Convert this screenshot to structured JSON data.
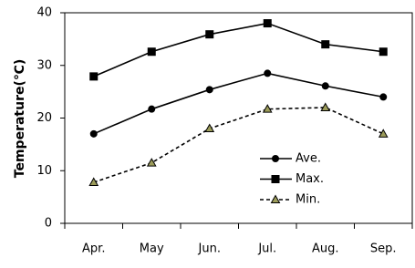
{
  "chart_data": {
    "type": "line",
    "y_label": "Temperature(℃)",
    "categories": [
      "Apr.",
      "May",
      "Jun.",
      "Jul.",
      "Aug.",
      "Sep."
    ],
    "series": [
      {
        "name": "Ave.",
        "color": "#000000",
        "marker": "circle",
        "marker_fill": "#000000",
        "dashed": false,
        "values": [
          17.0,
          21.7,
          25.4,
          28.5,
          26.1,
          24.0
        ]
      },
      {
        "name": "Max.",
        "color": "#000000",
        "marker": "square",
        "marker_fill": "#000000",
        "dashed": false,
        "values": [
          27.9,
          32.6,
          35.9,
          38.0,
          34.0,
          32.6
        ]
      },
      {
        "name": "Min.",
        "color": "#000000",
        "marker": "triangle",
        "marker_fill": "#9c9c5a",
        "dashed": true,
        "values": [
          7.8,
          11.5,
          18.0,
          21.7,
          22.0,
          17.0
        ]
      }
    ],
    "ylim": [
      0,
      40
    ],
    "yticks": [
      0,
      10,
      20,
      30,
      40
    ],
    "grid": false
  }
}
